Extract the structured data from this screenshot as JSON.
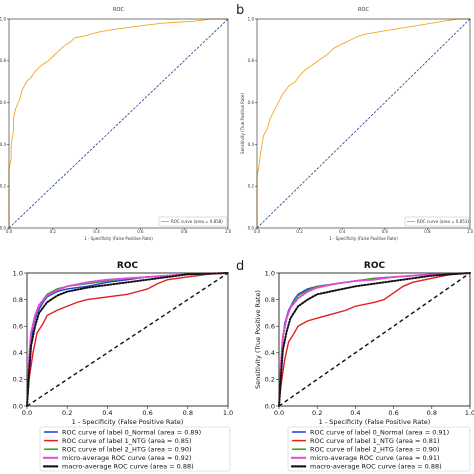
{
  "figure": {
    "colors": {
      "orange": "#f5a623",
      "diagonal": "#1f3b8c",
      "normal": "#1f3fd8",
      "ntg": "#e02020",
      "htg": "#2aa02a",
      "micro": "#e24bd6",
      "macro": "#111111"
    }
  },
  "chart_data": [
    {
      "panel": "a",
      "type": "line",
      "title": "ROC",
      "xlabel": "1 - Specificity (False Positive Rate)",
      "ylabel": "",
      "xlim": [
        0,
        1
      ],
      "ylim": [
        0,
        1
      ],
      "xticks": [
        "0.0",
        "0.2",
        "0.4",
        "0.6",
        "0.8",
        "1.0"
      ],
      "yticks": [
        "0.0",
        "0.2",
        "0.4",
        "0.6",
        "0.8",
        "1.0"
      ],
      "legend_position": "lower-right",
      "series": [
        {
          "name": "ROC curve (area = 0.858)",
          "color_key": "orange",
          "style": "solid",
          "x": [
            0,
            0,
            0.01,
            0.01,
            0.02,
            0.02,
            0.03,
            0.05,
            0.06,
            0.08,
            0.1,
            0.12,
            0.15,
            0.18,
            0.2,
            0.22,
            0.25,
            0.28,
            0.3,
            0.35,
            0.38,
            0.42,
            0.48,
            0.55,
            0.62,
            0.7,
            0.78,
            0.85,
            0.92,
            1.0
          ],
          "y": [
            0,
            0.28,
            0.33,
            0.4,
            0.46,
            0.52,
            0.57,
            0.62,
            0.66,
            0.7,
            0.72,
            0.75,
            0.78,
            0.8,
            0.82,
            0.84,
            0.87,
            0.89,
            0.91,
            0.92,
            0.93,
            0.94,
            0.95,
            0.96,
            0.97,
            0.98,
            0.985,
            0.99,
            1.0,
            1.0
          ]
        },
        {
          "name": "",
          "color_key": "diagonal",
          "style": "dashed",
          "x": [
            0,
            1
          ],
          "y": [
            0,
            1
          ]
        }
      ]
    },
    {
      "panel": "b",
      "type": "line",
      "title": "ROC",
      "xlabel": "1 - Specificity (False Positive Rate)",
      "ylabel": "Sensitivity (True Positive Rate)",
      "xlim": [
        0,
        1
      ],
      "ylim": [
        0,
        1
      ],
      "xticks": [
        "0.0",
        "0.2",
        "0.4",
        "0.6",
        "0.8",
        "1.0"
      ],
      "yticks": [
        "0.0",
        "0.2",
        "0.4",
        "0.6",
        "0.8",
        "1.0"
      ],
      "legend_position": "lower-right",
      "series": [
        {
          "name": "ROC curve (area = 0.853)",
          "color_key": "orange",
          "style": "solid",
          "x": [
            0,
            0,
            0.01,
            0.02,
            0.03,
            0.05,
            0.06,
            0.08,
            0.1,
            0.12,
            0.15,
            0.18,
            0.2,
            0.23,
            0.26,
            0.3,
            0.33,
            0.36,
            0.4,
            0.44,
            0.48,
            0.52,
            0.58,
            0.64,
            0.7,
            0.76,
            0.82,
            0.88,
            0.94,
            1.0
          ],
          "y": [
            0,
            0.25,
            0.3,
            0.38,
            0.44,
            0.48,
            0.52,
            0.56,
            0.6,
            0.64,
            0.68,
            0.7,
            0.73,
            0.76,
            0.78,
            0.81,
            0.83,
            0.86,
            0.88,
            0.9,
            0.92,
            0.93,
            0.94,
            0.95,
            0.96,
            0.97,
            0.98,
            0.99,
            1.0,
            1.0
          ]
        },
        {
          "name": "",
          "color_key": "diagonal",
          "style": "dashed",
          "x": [
            0,
            1
          ],
          "y": [
            0,
            1
          ]
        }
      ]
    },
    {
      "panel": "c",
      "type": "line",
      "title": "ROC",
      "xlabel": "1 - Specificity (False Positive Rate)",
      "ylabel": "",
      "xlim": [
        0,
        1
      ],
      "ylim": [
        0,
        1
      ],
      "xticks": [
        "0.0",
        "0.2",
        "0.4",
        "0.6",
        "0.8",
        "1.0"
      ],
      "yticks": [
        "0.0",
        "0.2",
        "0.4",
        "0.6",
        "0.8",
        "1.0"
      ],
      "legend_position": "below",
      "series": [
        {
          "name": "ROC curve of label 0_Normal (area = 0.89)",
          "color_key": "normal",
          "style": "solid",
          "x": [
            0,
            0.01,
            0.02,
            0.03,
            0.05,
            0.08,
            0.1,
            0.15,
            0.2,
            0.3,
            0.4,
            0.5,
            0.6,
            0.7,
            0.8,
            1.0
          ],
          "y": [
            0,
            0.2,
            0.45,
            0.6,
            0.7,
            0.78,
            0.82,
            0.86,
            0.88,
            0.9,
            0.93,
            0.95,
            0.97,
            0.98,
            0.99,
            1.0
          ]
        },
        {
          "name": "ROC curve of label 1_NTG (area = 0.85)",
          "color_key": "ntg",
          "style": "solid",
          "x": [
            0,
            0.01,
            0.03,
            0.05,
            0.08,
            0.1,
            0.15,
            0.2,
            0.25,
            0.3,
            0.4,
            0.5,
            0.55,
            0.6,
            0.65,
            0.7,
            0.8,
            0.9,
            1.0
          ],
          "y": [
            0,
            0.2,
            0.4,
            0.55,
            0.62,
            0.68,
            0.72,
            0.75,
            0.78,
            0.8,
            0.82,
            0.84,
            0.86,
            0.88,
            0.92,
            0.95,
            0.97,
            0.99,
            1.0
          ]
        },
        {
          "name": "ROC curve of label 2_HTG (area = 0.90)",
          "color_key": "htg",
          "style": "solid",
          "x": [
            0,
            0.01,
            0.02,
            0.04,
            0.06,
            0.08,
            0.1,
            0.15,
            0.2,
            0.3,
            0.4,
            0.5,
            0.6,
            0.7,
            0.8,
            1.0
          ],
          "y": [
            0,
            0.3,
            0.55,
            0.68,
            0.75,
            0.8,
            0.84,
            0.88,
            0.9,
            0.92,
            0.94,
            0.96,
            0.97,
            0.98,
            0.99,
            1.0
          ]
        },
        {
          "name": "micro-average ROC curve (area = 0.92)",
          "color_key": "micro",
          "style": "dotted",
          "x": [
            0,
            0.01,
            0.02,
            0.04,
            0.06,
            0.1,
            0.15,
            0.2,
            0.3,
            0.4,
            0.5,
            0.6,
            0.7,
            0.8,
            1.0
          ],
          "y": [
            0,
            0.35,
            0.55,
            0.68,
            0.76,
            0.83,
            0.87,
            0.9,
            0.93,
            0.95,
            0.96,
            0.97,
            0.98,
            0.99,
            1.0
          ]
        },
        {
          "name": "macro-average ROC curve (area = 0.88)",
          "color_key": "macro",
          "style": "dotted",
          "x": [
            0,
            0.01,
            0.02,
            0.04,
            0.06,
            0.1,
            0.15,
            0.2,
            0.3,
            0.4,
            0.5,
            0.6,
            0.7,
            0.8,
            1.0
          ],
          "y": [
            0,
            0.25,
            0.45,
            0.6,
            0.7,
            0.78,
            0.83,
            0.86,
            0.89,
            0.91,
            0.93,
            0.95,
            0.97,
            0.99,
            1.0
          ]
        },
        {
          "name": "",
          "color_key": "macro",
          "style": "dashed",
          "x": [
            0,
            1
          ],
          "y": [
            0,
            1
          ]
        }
      ]
    },
    {
      "panel": "d",
      "type": "line",
      "title": "ROC",
      "xlabel": "1 - Specificity (False Positive Rate)",
      "ylabel": "Sensitivity (True Positive Rate)",
      "xlim": [
        0,
        1
      ],
      "ylim": [
        0,
        1
      ],
      "xticks": [
        "0.0",
        "0.2",
        "0.4",
        "0.6",
        "0.8",
        "1.0"
      ],
      "yticks": [
        "0.0",
        "0.2",
        "0.4",
        "0.6",
        "0.8",
        "1.0"
      ],
      "legend_position": "below",
      "series": [
        {
          "name": "ROC curve of label 0_Normal (area = 0.91)",
          "color_key": "normal",
          "style": "solid",
          "x": [
            0,
            0.01,
            0.02,
            0.03,
            0.05,
            0.08,
            0.1,
            0.15,
            0.2,
            0.3,
            0.4,
            0.5,
            0.6,
            0.7,
            0.8,
            1.0
          ],
          "y": [
            0,
            0.25,
            0.5,
            0.62,
            0.72,
            0.8,
            0.84,
            0.88,
            0.9,
            0.92,
            0.94,
            0.96,
            0.97,
            0.98,
            0.99,
            1.0
          ]
        },
        {
          "name": "ROC curve of label 1_NTG (area = 0.81)",
          "color_key": "ntg",
          "style": "solid",
          "x": [
            0,
            0.01,
            0.03,
            0.05,
            0.08,
            0.1,
            0.15,
            0.2,
            0.25,
            0.3,
            0.35,
            0.4,
            0.5,
            0.55,
            0.6,
            0.65,
            0.7,
            0.8,
            0.9,
            1.0
          ],
          "y": [
            0,
            0.15,
            0.35,
            0.48,
            0.55,
            0.6,
            0.64,
            0.66,
            0.68,
            0.7,
            0.72,
            0.75,
            0.78,
            0.8,
            0.85,
            0.9,
            0.93,
            0.96,
            0.99,
            1.0
          ]
        },
        {
          "name": "ROC curve of label 2_HTG (area = 0.90)",
          "color_key": "htg",
          "style": "solid",
          "x": [
            0,
            0.01,
            0.02,
            0.04,
            0.06,
            0.08,
            0.1,
            0.15,
            0.2,
            0.3,
            0.4,
            0.5,
            0.6,
            0.7,
            0.8,
            1.0
          ],
          "y": [
            0,
            0.3,
            0.52,
            0.66,
            0.74,
            0.79,
            0.83,
            0.87,
            0.9,
            0.92,
            0.94,
            0.96,
            0.97,
            0.98,
            0.99,
            1.0
          ]
        },
        {
          "name": "micro-average ROC curve (area = 0.91)",
          "color_key": "micro",
          "style": "dotted",
          "x": [
            0,
            0.01,
            0.02,
            0.04,
            0.06,
            0.1,
            0.15,
            0.2,
            0.3,
            0.4,
            0.5,
            0.6,
            0.7,
            0.8,
            1.0
          ],
          "y": [
            0,
            0.32,
            0.52,
            0.66,
            0.74,
            0.81,
            0.86,
            0.89,
            0.92,
            0.94,
            0.95,
            0.97,
            0.98,
            0.99,
            1.0
          ]
        },
        {
          "name": "macro-average ROC curve (area = 0.88)",
          "color_key": "macro",
          "style": "dotted",
          "x": [
            0,
            0.01,
            0.02,
            0.04,
            0.06,
            0.1,
            0.15,
            0.2,
            0.3,
            0.4,
            0.5,
            0.6,
            0.7,
            0.8,
            1.0
          ],
          "y": [
            0,
            0.22,
            0.42,
            0.56,
            0.66,
            0.75,
            0.8,
            0.84,
            0.87,
            0.9,
            0.92,
            0.94,
            0.96,
            0.98,
            1.0
          ]
        },
        {
          "name": "",
          "color_key": "macro",
          "style": "dashed",
          "x": [
            0,
            1
          ],
          "y": [
            0,
            1
          ]
        }
      ]
    }
  ]
}
